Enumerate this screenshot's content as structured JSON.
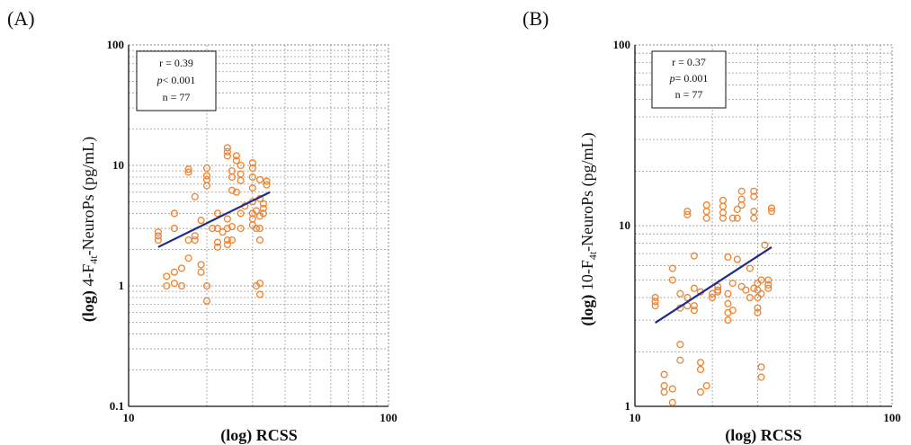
{
  "chart_data": [
    {
      "type": "scatter",
      "panel_label": "(A)",
      "xlabel_prefix": "(log)",
      "xlabel": "RCSS",
      "ylabel_prefix": "(log)",
      "ylabel_main": "4-F",
      "ylabel_sub": "4t",
      "ylabel_tail": "-NeuroPs (pg/mL)",
      "xscale": "log",
      "yscale": "log",
      "xlim": [
        10,
        100
      ],
      "ylim": [
        0.1,
        100
      ],
      "xticks": [
        "10",
        "100"
      ],
      "yticks": [
        "0.1",
        "1",
        "10",
        "100"
      ],
      "grid": true,
      "stats": {
        "r": "r = 0.39",
        "p_symbol": "p",
        "p_value": "< 0.001",
        "n": "n = 77"
      },
      "marker_color": "#f0822e",
      "line_color": "#1f2a8f",
      "trendline": {
        "x": [
          13,
          35
        ],
        "y": [
          2.1,
          6.0
        ]
      },
      "points": [
        [
          13,
          2.4
        ],
        [
          13,
          2.6
        ],
        [
          13,
          2.8
        ],
        [
          14,
          1.0
        ],
        [
          14,
          1.2
        ],
        [
          15,
          1.3
        ],
        [
          15,
          1.05
        ],
        [
          15,
          3.0
        ],
        [
          15,
          4.0
        ],
        [
          16,
          1.4
        ],
        [
          16,
          1.0
        ],
        [
          17,
          1.7
        ],
        [
          17,
          2.4
        ],
        [
          17,
          8.8
        ],
        [
          17,
          9.3
        ],
        [
          18,
          2.4
        ],
        [
          18,
          5.5
        ],
        [
          18,
          2.6
        ],
        [
          19,
          1.3
        ],
        [
          19,
          1.5
        ],
        [
          19,
          3.5
        ],
        [
          20,
          0.75
        ],
        [
          20,
          1.0
        ],
        [
          20,
          6.8
        ],
        [
          20,
          7.6
        ],
        [
          20,
          8.2
        ],
        [
          20,
          9.5
        ],
        [
          22,
          2.1
        ],
        [
          22,
          2.3
        ],
        [
          22,
          3.0
        ],
        [
          22,
          4.0
        ],
        [
          24,
          2.2
        ],
        [
          24,
          2.4
        ],
        [
          24,
          3.0
        ],
        [
          24,
          3.6
        ],
        [
          24,
          12.0
        ],
        [
          24,
          13.0
        ],
        [
          24,
          14.0
        ],
        [
          25,
          2.4
        ],
        [
          25,
          3.1
        ],
        [
          25,
          6.2
        ],
        [
          25,
          8.0
        ],
        [
          25,
          9.0
        ],
        [
          26,
          11.0
        ],
        [
          26,
          12.0
        ],
        [
          27,
          3.0
        ],
        [
          27,
          4.0
        ],
        [
          27,
          7.5
        ],
        [
          27,
          8.5
        ],
        [
          27,
          10.0
        ],
        [
          30,
          3.2
        ],
        [
          30,
          3.6
        ],
        [
          30,
          4.0
        ],
        [
          30,
          5.0
        ],
        [
          30,
          6.5
        ],
        [
          30,
          8.0
        ],
        [
          30,
          9.5
        ],
        [
          30,
          10.5
        ],
        [
          31,
          1.0
        ],
        [
          31,
          3.0
        ],
        [
          31,
          4.2
        ],
        [
          32,
          0.85
        ],
        [
          32,
          1.05
        ],
        [
          32,
          2.4
        ],
        [
          32,
          3.0
        ],
        [
          32,
          3.8
        ],
        [
          32,
          5.3
        ],
        [
          32,
          7.6
        ],
        [
          33,
          4.0
        ],
        [
          33,
          4.4
        ],
        [
          33,
          4.8
        ],
        [
          34,
          6.9
        ],
        [
          34,
          7.4
        ],
        [
          26,
          6.0
        ],
        [
          23,
          2.8
        ],
        [
          21,
          3.0
        ],
        [
          28,
          4.6
        ]
      ]
    },
    {
      "type": "scatter",
      "panel_label": "(B)",
      "xlabel_prefix": "(log)",
      "xlabel": "RCSS",
      "ylabel_prefix": "(log)",
      "ylabel_main": "10-F",
      "ylabel_sub": "4t",
      "ylabel_tail": "-NeuroPs (pg/mL)",
      "xscale": "log",
      "yscale": "log",
      "xlim": [
        10,
        100
      ],
      "ylim": [
        1,
        100
      ],
      "xticks": [
        "10",
        "100"
      ],
      "yticks": [
        "1",
        "10",
        "100"
      ],
      "grid": true,
      "stats": {
        "r": "r = 0.37",
        "p_symbol": "p",
        "p_value": "= 0.001",
        "n": "n = 77"
      },
      "marker_color": "#f0822e",
      "line_color": "#1f2a8f",
      "trendline": {
        "x": [
          12,
          34
        ],
        "y": [
          2.9,
          7.6
        ]
      },
      "points": [
        [
          12,
          3.6
        ],
        [
          12,
          3.8
        ],
        [
          12,
          4.0
        ],
        [
          13,
          1.2
        ],
        [
          13,
          1.3
        ],
        [
          13,
          1.5
        ],
        [
          14,
          1.05
        ],
        [
          14,
          1.25
        ],
        [
          14,
          5.0
        ],
        [
          14,
          5.8
        ],
        [
          15,
          1.8
        ],
        [
          15,
          2.2
        ],
        [
          15,
          3.5
        ],
        [
          16,
          4.0
        ],
        [
          16,
          11.5
        ],
        [
          16,
          12.0
        ],
        [
          17,
          3.6
        ],
        [
          17,
          6.8
        ],
        [
          17,
          4.5
        ],
        [
          18,
          1.2
        ],
        [
          18,
          1.6
        ],
        [
          18,
          1.75
        ],
        [
          18,
          4.3
        ],
        [
          19,
          1.3
        ],
        [
          19,
          11.0
        ],
        [
          19,
          12.0
        ],
        [
          19,
          13.0
        ],
        [
          21,
          4.3
        ],
        [
          21,
          4.6
        ],
        [
          22,
          11.0
        ],
        [
          22,
          11.8
        ],
        [
          22,
          12.8
        ],
        [
          22,
          13.8
        ],
        [
          23,
          3.0
        ],
        [
          23,
          3.3
        ],
        [
          23,
          3.7
        ],
        [
          23,
          4.2
        ],
        [
          23,
          6.7
        ],
        [
          24,
          3.4
        ],
        [
          24,
          4.8
        ],
        [
          24,
          11.0
        ],
        [
          25,
          11.0
        ],
        [
          25,
          12.3
        ],
        [
          26,
          13.0
        ],
        [
          26,
          14.0
        ],
        [
          26,
          15.5
        ],
        [
          28,
          5.8
        ],
        [
          29,
          4.5
        ],
        [
          29,
          11.0
        ],
        [
          29,
          12.0
        ],
        [
          29,
          14.5
        ],
        [
          29,
          15.5
        ],
        [
          30,
          3.3
        ],
        [
          30,
          3.5
        ],
        [
          30,
          4.0
        ],
        [
          30,
          4.4
        ],
        [
          30,
          4.8
        ],
        [
          31,
          1.45
        ],
        [
          31,
          1.65
        ],
        [
          31,
          4.2
        ],
        [
          31,
          5.0
        ],
        [
          32,
          7.8
        ],
        [
          33,
          4.5
        ],
        [
          33,
          4.7
        ],
        [
          33,
          5.0
        ],
        [
          34,
          12.0
        ],
        [
          34,
          12.5
        ],
        [
          20,
          4.2
        ],
        [
          20,
          4.0
        ],
        [
          27,
          4.4
        ],
        [
          28,
          4.0
        ],
        [
          25,
          6.5
        ],
        [
          15,
          4.2
        ],
        [
          16,
          3.6
        ],
        [
          26,
          4.6
        ],
        [
          21,
          4.4
        ],
        [
          17,
          3.4
        ]
      ]
    }
  ]
}
